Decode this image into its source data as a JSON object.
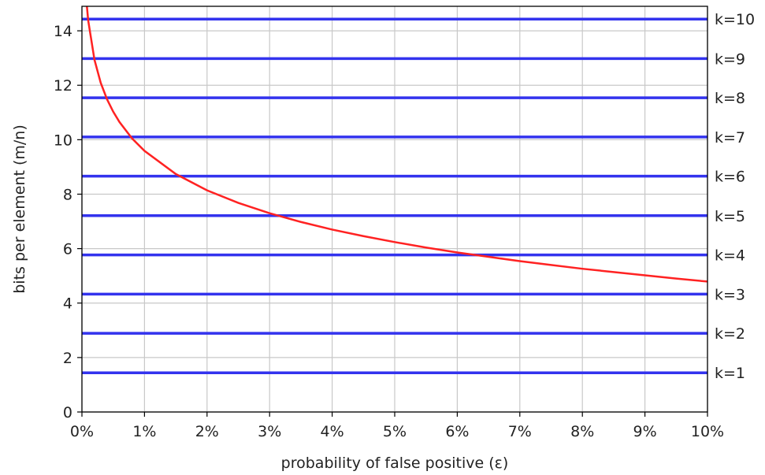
{
  "chart_data": {
    "type": "line",
    "xlabel": "probability of false positive (ε)",
    "ylabel": "bits per element (m/n)",
    "xlim": [
      0,
      0.1
    ],
    "ylim": [
      0,
      14.9
    ],
    "x_ticks": [
      0,
      0.01,
      0.02,
      0.03,
      0.04,
      0.05,
      0.06,
      0.07,
      0.08,
      0.09,
      0.1
    ],
    "x_tick_labels": [
      "0%",
      "1%",
      "2%",
      "3%",
      "4%",
      "5%",
      "6%",
      "7%",
      "8%",
      "9%",
      "10%"
    ],
    "y_ticks": [
      0,
      2,
      4,
      6,
      8,
      10,
      12,
      14
    ],
    "y_tick_labels": [
      "0",
      "2",
      "4",
      "6",
      "8",
      "10",
      "12",
      "14"
    ],
    "grid": true,
    "colors": {
      "curve": "#ff2222",
      "hlines": "#3333ee",
      "grid": "#c8c8c8",
      "axes": "#000000"
    },
    "curve": {
      "x": [
        0.0007,
        0.001,
        0.002,
        0.003,
        0.004,
        0.005,
        0.006,
        0.008,
        0.01,
        0.015,
        0.02,
        0.025,
        0.03,
        0.035,
        0.04,
        0.045,
        0.05,
        0.055,
        0.06,
        0.065,
        0.07,
        0.075,
        0.08,
        0.085,
        0.09,
        0.095,
        0.1
      ],
      "y": [
        15.13,
        14.38,
        12.94,
        12.09,
        11.49,
        11.03,
        10.65,
        10.05,
        9.59,
        8.74,
        8.14,
        7.68,
        7.3,
        6.98,
        6.7,
        6.46,
        6.24,
        6.04,
        5.86,
        5.7,
        5.54,
        5.4,
        5.26,
        5.14,
        5.02,
        4.9,
        4.79
      ]
    },
    "hlines": [
      {
        "label": "k=1",
        "y": 1.44
      },
      {
        "label": "k=2",
        "y": 2.89
      },
      {
        "label": "k=3",
        "y": 4.33
      },
      {
        "label": "k=4",
        "y": 5.77
      },
      {
        "label": "k=5",
        "y": 7.21
      },
      {
        "label": "k=6",
        "y": 8.66
      },
      {
        "label": "k=7",
        "y": 10.1
      },
      {
        "label": "k=8",
        "y": 11.54
      },
      {
        "label": "k=9",
        "y": 12.98
      },
      {
        "label": "k=10",
        "y": 14.43
      }
    ]
  }
}
